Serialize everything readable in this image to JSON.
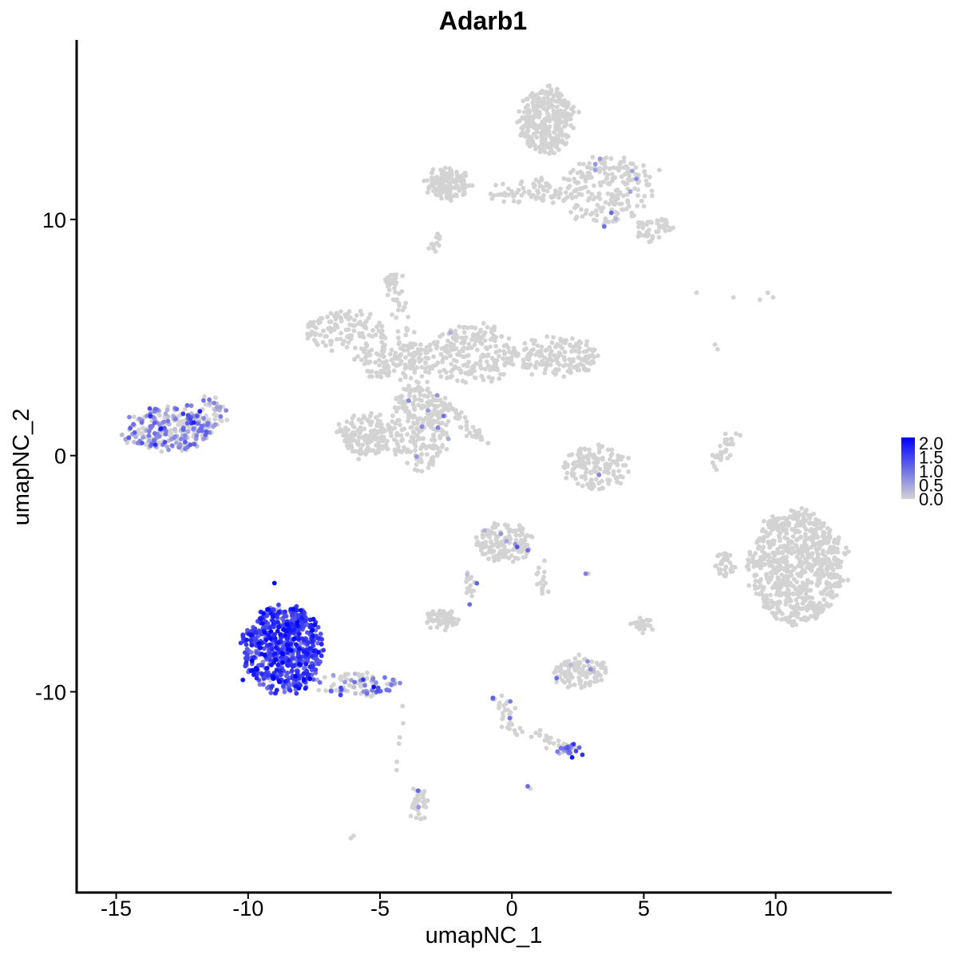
{
  "chart_data": {
    "type": "scatter",
    "title": "Adarb1",
    "xlabel": "umapNC_1",
    "ylabel": "umapNC_2",
    "xlim": [
      -16.5,
      14.4
    ],
    "ylim": [
      -18.5,
      17.6
    ],
    "x_ticks": [
      {
        "value": -15,
        "label": "-15"
      },
      {
        "value": -10,
        "label": "-10"
      },
      {
        "value": -5,
        "label": "-5"
      },
      {
        "value": 0,
        "label": "0"
      },
      {
        "value": 5,
        "label": "5"
      },
      {
        "value": 10,
        "label": "10"
      }
    ],
    "y_ticks": [
      {
        "value": 10,
        "label": "10"
      },
      {
        "value": 0,
        "label": "0"
      },
      {
        "value": -10,
        "label": "-10"
      }
    ],
    "grid": false,
    "legend": {
      "placement": "right",
      "min": 0.0,
      "max": 2.0,
      "labels": [
        "2.0",
        "1.5",
        "1.0",
        "0.5",
        "0.0"
      ],
      "color_low": "#D3D3D3",
      "color_high": "#0000FF"
    },
    "clusters": [
      {
        "cx": -13.1,
        "cy": 1.1,
        "rx": 1.7,
        "ry": 0.9,
        "n": 260,
        "expr_frac": 0.55,
        "expr_mean": 0.7
      },
      {
        "cx": -11.7,
        "cy": 1.7,
        "rx": 0.8,
        "ry": 0.7,
        "n": 50,
        "expr_frac": 0.4,
        "expr_mean": 0.6
      },
      {
        "cx": -8.7,
        "cy": -8.2,
        "rx": 1.5,
        "ry": 1.8,
        "n": 700,
        "expr_frac": 0.95,
        "expr_mean": 1.3
      },
      {
        "cx": -5.8,
        "cy": -9.7,
        "rx": 1.6,
        "ry": 0.5,
        "n": 90,
        "expr_frac": 0.5,
        "expr_mean": 0.7
      },
      {
        "cx": -2.4,
        "cy": 11.5,
        "rx": 0.8,
        "ry": 0.6,
        "n": 150,
        "expr_frac": 0.0,
        "expr_mean": 0.0
      },
      {
        "cx": 1.0,
        "cy": 11.1,
        "rx": 2.0,
        "ry": 0.4,
        "n": 70,
        "expr_frac": 0.0,
        "expr_mean": 0.0
      },
      {
        "cx": 1.3,
        "cy": 14.2,
        "rx": 1.0,
        "ry": 1.4,
        "n": 320,
        "expr_frac": 0.0,
        "expr_mean": 0.0
      },
      {
        "cx": 3.6,
        "cy": 11.2,
        "rx": 1.6,
        "ry": 1.5,
        "n": 180,
        "expr_frac": 0.05,
        "expr_mean": 0.5
      },
      {
        "cx": 5.4,
        "cy": 9.6,
        "rx": 0.7,
        "ry": 0.5,
        "n": 50,
        "expr_frac": 0.0,
        "expr_mean": 0.0
      },
      {
        "cx": -6.3,
        "cy": 5.3,
        "rx": 1.6,
        "ry": 0.8,
        "n": 120,
        "expr_frac": 0.0,
        "expr_mean": 0.0
      },
      {
        "cx": -4.4,
        "cy": 4.0,
        "rx": 1.5,
        "ry": 0.8,
        "n": 140,
        "expr_frac": 0.0,
        "expr_mean": 0.0
      },
      {
        "cx": -1.5,
        "cy": 4.3,
        "rx": 1.7,
        "ry": 1.2,
        "n": 210,
        "expr_frac": 0.01,
        "expr_mean": 0.5
      },
      {
        "cx": 1.7,
        "cy": 4.2,
        "rx": 1.6,
        "ry": 0.8,
        "n": 160,
        "expr_frac": 0.0,
        "expr_mean": 0.0
      },
      {
        "cx": -3.5,
        "cy": 1.2,
        "rx": 1.1,
        "ry": 1.8,
        "n": 250,
        "expr_frac": 0.03,
        "expr_mean": 0.5
      },
      {
        "cx": -5.5,
        "cy": 0.9,
        "rx": 1.1,
        "ry": 0.9,
        "n": 170,
        "expr_frac": 0.0,
        "expr_mean": 0.0
      },
      {
        "cx": 3.2,
        "cy": -0.5,
        "rx": 1.2,
        "ry": 0.9,
        "n": 140,
        "expr_frac": 0.01,
        "expr_mean": 0.5
      },
      {
        "cx": 10.8,
        "cy": -4.7,
        "rx": 1.8,
        "ry": 2.4,
        "n": 700,
        "expr_frac": 0.0,
        "expr_mean": 0.0
      },
      {
        "cx": 8.1,
        "cy": -4.6,
        "rx": 0.3,
        "ry": 0.6,
        "n": 35,
        "expr_frac": 0.0,
        "expr_mean": 0.0
      },
      {
        "cx": -0.3,
        "cy": -3.7,
        "rx": 1.1,
        "ry": 0.8,
        "n": 150,
        "expr_frac": 0.04,
        "expr_mean": 0.6
      },
      {
        "cx": -2.6,
        "cy": -6.9,
        "rx": 0.6,
        "ry": 0.35,
        "n": 60,
        "expr_frac": 0.0,
        "expr_mean": 0.0
      },
      {
        "cx": 2.6,
        "cy": -9.2,
        "rx": 1.0,
        "ry": 0.6,
        "n": 110,
        "expr_frac": 0.03,
        "expr_mean": 0.6
      },
      {
        "cx": 5.0,
        "cy": -7.2,
        "rx": 0.3,
        "ry": 0.3,
        "n": 25,
        "expr_frac": 0.0,
        "expr_mean": 0.0
      },
      {
        "cx": 2.3,
        "cy": -12.5,
        "rx": 0.5,
        "ry": 0.25,
        "n": 25,
        "expr_frac": 0.6,
        "expr_mean": 0.9
      },
      {
        "cx": -3.5,
        "cy": -14.8,
        "rx": 0.25,
        "ry": 0.7,
        "n": 40,
        "expr_frac": 0.1,
        "expr_mean": 0.6
      },
      {
        "cx": -14.5,
        "cy": -25.0,
        "rx": 0.1,
        "ry": 0.1,
        "n": 0,
        "expr_frac": 0.0,
        "expr_mean": 0.0
      }
    ],
    "paths": [
      {
        "x0": -3.5,
        "y0": 3.0,
        "x1": -4.6,
        "y1": 7.6,
        "n": 40,
        "w": 0.2,
        "expr_frac": 0.0,
        "expr_mean": 0.0
      },
      {
        "x0": -2.6,
        "y0": 2.3,
        "x1": -1.1,
        "y1": 0.6,
        "n": 45,
        "w": 0.12,
        "expr_frac": 0.0,
        "expr_mean": 0.0
      },
      {
        "x0": 0.5,
        "y0": 11.3,
        "x1": 5.4,
        "y1": 12.0,
        "n": 40,
        "w": 0.3,
        "expr_frac": 0.05,
        "expr_mean": 0.6
      },
      {
        "x0": 8.4,
        "y0": 1.2,
        "x1": 7.8,
        "y1": -0.4,
        "n": 30,
        "w": 0.12,
        "expr_frac": 0.0,
        "expr_mean": 0.0
      },
      {
        "x0": -0.5,
        "y0": -10.0,
        "x1": -0.2,
        "y1": -11.5,
        "n": 25,
        "w": 0.2,
        "expr_frac": 0.2,
        "expr_mean": 0.8
      },
      {
        "x0": -0.2,
        "y0": -11.5,
        "x1": 2.3,
        "y1": -12.5,
        "n": 30,
        "w": 0.15,
        "expr_frac": 0.1,
        "expr_mean": 0.6
      },
      {
        "x0": -1.6,
        "y0": -5.0,
        "x1": -1.6,
        "y1": -6.2,
        "n": 18,
        "w": 0.12,
        "expr_frac": 0.1,
        "expr_mean": 0.6
      },
      {
        "x0": 1.0,
        "y0": -4.5,
        "x1": 1.2,
        "y1": -5.8,
        "n": 15,
        "w": 0.15,
        "expr_frac": 0.1,
        "expr_mean": 0.7
      },
      {
        "x0": -4.2,
        "y0": -10.5,
        "x1": -4.4,
        "y1": -13.3,
        "n": 6,
        "w": 0.1,
        "expr_frac": 0.0,
        "expr_mean": 0.0
      },
      {
        "x0": -3.0,
        "y0": 8.8,
        "x1": -2.8,
        "y1": 9.2,
        "n": 12,
        "w": 0.15,
        "expr_frac": 0.0,
        "expr_mean": 0.0
      },
      {
        "x0": -4.8,
        "y0": 7.3,
        "x1": -4.3,
        "y1": 7.7,
        "n": 20,
        "w": 0.15,
        "expr_frac": 0.0,
        "expr_mean": 0.0
      }
    ],
    "isolated_points": [
      {
        "x": 7.0,
        "y": 6.9,
        "expr": 0.0
      },
      {
        "x": 8.4,
        "y": 6.7,
        "expr": 0.0
      },
      {
        "x": 9.4,
        "y": 6.6,
        "expr": 0.0
      },
      {
        "x": 9.7,
        "y": 6.9,
        "expr": 0.0
      },
      {
        "x": 9.9,
        "y": 6.7,
        "expr": 0.0
      },
      {
        "x": 7.7,
        "y": 4.7,
        "expr": 0.0
      },
      {
        "x": 7.8,
        "y": 4.5,
        "expr": 0.0
      },
      {
        "x": -6.1,
        "y": -16.2,
        "expr": 0.0
      },
      {
        "x": -6.0,
        "y": -16.1,
        "expr": 0.0
      },
      {
        "x": 0.6,
        "y": -14.0,
        "expr": 1.0
      },
      {
        "x": 0.7,
        "y": -14.1,
        "expr": 0.0
      },
      {
        "x": 2.8,
        "y": -5.0,
        "expr": 0.8
      },
      {
        "x": 2.9,
        "y": -5.0,
        "expr": 0.0
      },
      {
        "x": -1.6,
        "y": -6.3,
        "expr": 1.0
      },
      {
        "x": -9.0,
        "y": -5.4,
        "expr": 2.0
      },
      {
        "x": -9.7,
        "y": -9.0,
        "expr": 2.0
      },
      {
        "x": -8.3,
        "y": -6.5,
        "expr": 1.9
      },
      {
        "x": -10.2,
        "y": -9.5,
        "expr": 1.8
      }
    ]
  }
}
